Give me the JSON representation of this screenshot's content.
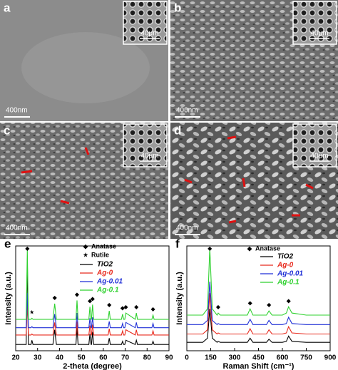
{
  "panels": [
    {
      "label": "a",
      "scale_bar": "400nm",
      "inset_scale_bar": "40μm"
    },
    {
      "label": "b",
      "scale_bar": "400nm",
      "inset_scale_bar": "40μm"
    },
    {
      "label": "c",
      "scale_bar": "400nm",
      "inset_scale_bar": "40μm"
    },
    {
      "label": "d",
      "scale_bar": "400nm",
      "inset_scale_bar": "40μm"
    }
  ],
  "chart_data": [
    {
      "type": "line",
      "panel_label": "e",
      "x_label": "2-theta (degree)",
      "y_label": "Intensity (a.u.)",
      "x": [
        20,
        24.8,
        25.3,
        25.8,
        27,
        27.4,
        27.9,
        37,
        37.8,
        38.6,
        47.5,
        48.0,
        48.5,
        53.4,
        53.9,
        54.4,
        54.6,
        55.1,
        55.6,
        62.2,
        62.7,
        63.2,
        68.3,
        68.8,
        69.3,
        69.8,
        70.3,
        74.6,
        75.1,
        75.6,
        82.2,
        82.7,
        83.2,
        90
      ],
      "xlim": [
        20,
        90
      ],
      "xticks": [
        20,
        30,
        40,
        50,
        60,
        70,
        80,
        90
      ],
      "ylim": [
        0,
        100
      ],
      "series": [
        {
          "name": "TiO2",
          "color": "#000000",
          "values": [
            6,
            6,
            88,
            6,
            6,
            10,
            6,
            6,
            20,
            6,
            6,
            22,
            6,
            6,
            16,
            6,
            6,
            18,
            6,
            6,
            12,
            6,
            6,
            9,
            6,
            6,
            10,
            6,
            10,
            6,
            6,
            9,
            6,
            6
          ]
        },
        {
          "name": "Ag-0",
          "color": "#e8291c",
          "values": [
            15,
            15,
            45,
            15,
            15,
            16,
            15,
            15,
            27,
            15,
            15,
            28,
            15,
            15,
            24,
            15,
            15,
            25,
            15,
            15,
            21,
            15,
            15,
            19,
            15,
            15,
            20,
            15,
            20,
            15,
            15,
            19,
            15,
            15
          ]
        },
        {
          "name": "Ag-0.01",
          "color": "#1f2fd6",
          "values": [
            22,
            22,
            55,
            22,
            22,
            23,
            22,
            22,
            35,
            22,
            22,
            36,
            22,
            22,
            31,
            22,
            22,
            32,
            22,
            22,
            28,
            22,
            22,
            26,
            22,
            22,
            27,
            22,
            27,
            22,
            22,
            26,
            22,
            22
          ]
        },
        {
          "name": "Ag-0.1",
          "color": "#2fd12f",
          "values": [
            30,
            30,
            96,
            30,
            30,
            31,
            30,
            30,
            45,
            30,
            30,
            48,
            30,
            30,
            42,
            30,
            30,
            44,
            30,
            30,
            38,
            30,
            30,
            35,
            30,
            30,
            36,
            30,
            36,
            30,
            30,
            34,
            30,
            30
          ]
        }
      ],
      "annotations": [
        {
          "symbol": "◆",
          "label": "Anatase"
        },
        {
          "symbol": "★",
          "label": "Rutile"
        }
      ],
      "peak_markers": [
        {
          "symbol": "◆",
          "x": 25.3
        },
        {
          "symbol": "★",
          "x": 27.4
        },
        {
          "symbol": "◆",
          "x": 37.8
        },
        {
          "symbol": "◆",
          "x": 48.0
        },
        {
          "symbol": "◆",
          "x": 53.9
        },
        {
          "symbol": "◆",
          "x": 55.1
        },
        {
          "symbol": "◆",
          "x": 62.7
        },
        {
          "symbol": "◆",
          "x": 68.8
        },
        {
          "symbol": "◆",
          "x": 70.3
        },
        {
          "symbol": "◆",
          "x": 75.1
        },
        {
          "symbol": "◆",
          "x": 82.7
        }
      ]
    },
    {
      "type": "line",
      "panel_label": "f",
      "x_label": "Raman Shift (cm⁻¹)",
      "y_label": "Intensity (a.u.)",
      "x": [
        0,
        100,
        130,
        144,
        160,
        190,
        197,
        210,
        300,
        380,
        397,
        415,
        480,
        500,
        516,
        535,
        600,
        625,
        639,
        660,
        750,
        900
      ],
      "xlim": [
        0,
        900
      ],
      "xticks": [
        0,
        150,
        300,
        450,
        600,
        750,
        900
      ],
      "ylim": [
        0,
        100
      ],
      "series": [
        {
          "name": "TiO2",
          "color": "#000000",
          "values": [
            8,
            8,
            12,
            40,
            12,
            8,
            9,
            8,
            8,
            8,
            12,
            8,
            8,
            8,
            11,
            8,
            8,
            9,
            14,
            9,
            8,
            8
          ]
        },
        {
          "name": "Ag-0",
          "color": "#e8291c",
          "values": [
            16,
            16,
            20,
            55,
            20,
            16,
            17,
            16,
            16,
            16,
            21,
            16,
            16,
            16,
            20,
            16,
            16,
            17,
            23,
            17,
            16,
            16
          ]
        },
        {
          "name": "Ag-0.01",
          "color": "#1f2fd6",
          "values": [
            25,
            25,
            29,
            66,
            29,
            25,
            26,
            25,
            25,
            25,
            30,
            25,
            25,
            25,
            29,
            25,
            25,
            26,
            32,
            26,
            25,
            25
          ]
        },
        {
          "name": "Ag-0.1",
          "color": "#2fd12f",
          "values": [
            34,
            34,
            40,
            98,
            40,
            34,
            36,
            34,
            34,
            34,
            40,
            34,
            34,
            34,
            38,
            34,
            34,
            36,
            42,
            36,
            34,
            34
          ]
        }
      ],
      "annotations": [
        {
          "symbol": "◆",
          "label": "Anatase"
        }
      ],
      "peak_markers": [
        {
          "symbol": "◆",
          "x": 144
        },
        {
          "symbol": "◆",
          "x": 197
        },
        {
          "symbol": "◆",
          "x": 397
        },
        {
          "symbol": "◆",
          "x": 516
        },
        {
          "symbol": "◆",
          "x": 639
        }
      ]
    }
  ]
}
